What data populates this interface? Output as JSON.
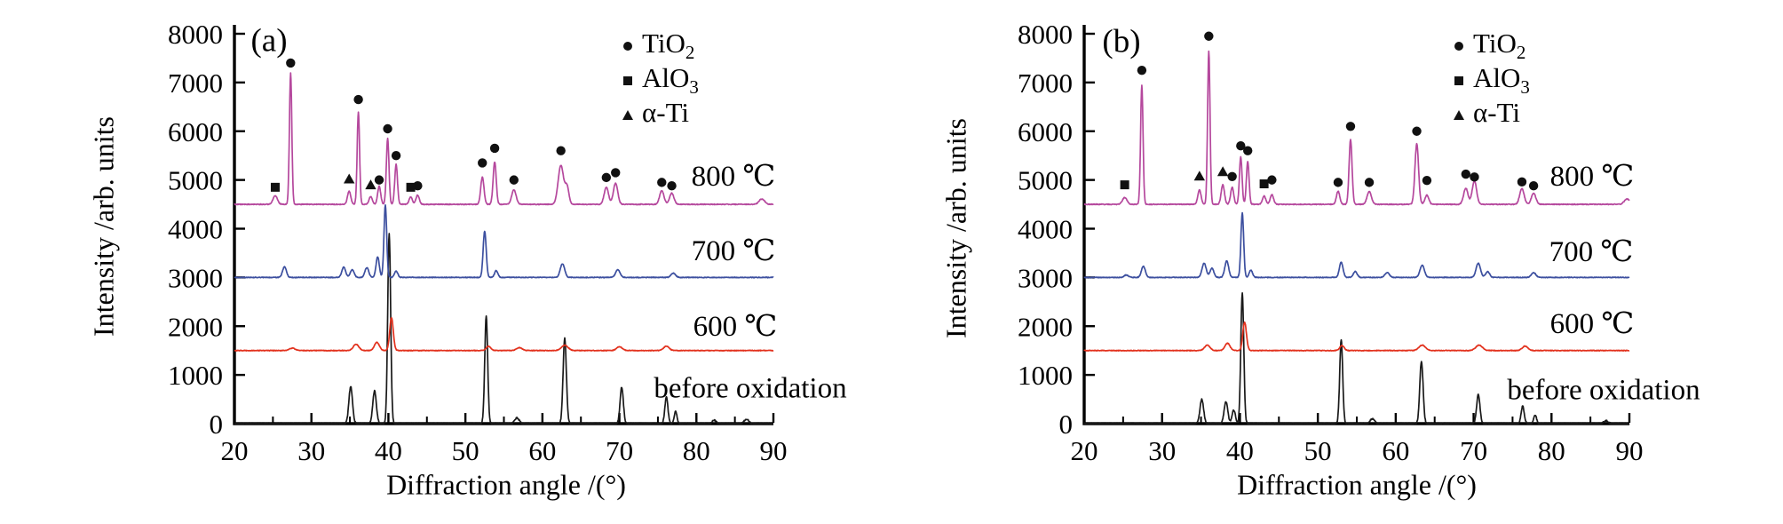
{
  "chart_data": {
    "type": "line",
    "description": "XRD diffraction patterns at different oxidation temperatures, two panels",
    "panels": [
      {
        "panel_label": "(a)",
        "x_axis_title": "Diffraction angle /(°)",
        "y_axis_title": "Intensity /arb. units",
        "x_range": [
          20,
          90
        ],
        "y_range": [
          0,
          8000
        ],
        "x_ticks": [
          20,
          30,
          40,
          50,
          60,
          70,
          80,
          90
        ],
        "x_minor_ticks": [
          25,
          35,
          45,
          55,
          65,
          75,
          85
        ],
        "y_ticks": [
          0,
          1000,
          2000,
          3000,
          4000,
          5000,
          6000,
          7000,
          8000
        ],
        "legend": [
          {
            "symbol": "circle",
            "base": "TiO",
            "sub": "2"
          },
          {
            "symbol": "square",
            "base": "AlO",
            "sub": "3"
          },
          {
            "symbol": "triangle",
            "base": "α-Ti",
            "sub": ""
          }
        ],
        "series": [
          {
            "id": "before-oxidation",
            "label": "before oxidation",
            "color": "#1a1a1a",
            "baseline": 0,
            "noise": 26,
            "peaks": [
              [
                35.1,
                760,
                0.33
              ],
              [
                38.2,
                670,
                0.33
              ],
              [
                40.1,
                3900,
                0.27
              ],
              [
                52.7,
                2200,
                0.27
              ],
              [
                56.7,
                120,
                0.4
              ],
              [
                62.9,
                1750,
                0.3
              ],
              [
                70.3,
                750,
                0.3
              ],
              [
                76.1,
                550,
                0.28
              ],
              [
                77.3,
                250,
                0.25
              ],
              [
                82.3,
                70,
                0.35
              ],
              [
                86.5,
                90,
                0.4
              ]
            ]
          },
          {
            "id": "600c",
            "label": "600 ℃",
            "color": "#e2311d",
            "baseline": 1500,
            "noise": 13,
            "peaks": [
              [
                27.5,
                50,
                0.5
              ],
              [
                35.8,
                130,
                0.5
              ],
              [
                38.5,
                170,
                0.45
              ],
              [
                40.4,
                670,
                0.33
              ],
              [
                53.0,
                90,
                0.4
              ],
              [
                57.0,
                60,
                0.5
              ],
              [
                62.9,
                110,
                0.6
              ],
              [
                70.0,
                80,
                0.5
              ],
              [
                76.1,
                90,
                0.5
              ]
            ]
          },
          {
            "id": "700c",
            "label": "700 ℃",
            "color": "#3c4f9f",
            "baseline": 3000,
            "noise": 14,
            "peaks": [
              [
                26.5,
                220,
                0.35
              ],
              [
                34.2,
                210,
                0.35
              ],
              [
                35.3,
                160,
                0.35
              ],
              [
                37.2,
                200,
                0.35
              ],
              [
                38.6,
                420,
                0.3
              ],
              [
                39.6,
                1480,
                0.25
              ],
              [
                41.0,
                130,
                0.3
              ],
              [
                52.5,
                950,
                0.28
              ],
              [
                54.0,
                140,
                0.3
              ],
              [
                62.6,
                280,
                0.4
              ],
              [
                69.8,
                160,
                0.4
              ],
              [
                77.0,
                90,
                0.4
              ]
            ]
          },
          {
            "id": "800c",
            "label": "800 ℃",
            "color": "#b5489d",
            "baseline": 4500,
            "noise": 16,
            "peaks": [
              [
                25.3,
                180,
                0.4
              ],
              [
                27.3,
                2700,
                0.22
              ],
              [
                34.9,
                270,
                0.3
              ],
              [
                36.1,
                1900,
                0.22
              ],
              [
                37.7,
                160,
                0.3
              ],
              [
                38.8,
                370,
                0.28
              ],
              [
                39.9,
                1350,
                0.24
              ],
              [
                41.0,
                820,
                0.25
              ],
              [
                42.9,
                150,
                0.3
              ],
              [
                43.8,
                190,
                0.3
              ],
              [
                52.2,
                560,
                0.3
              ],
              [
                53.8,
                870,
                0.28
              ],
              [
                56.3,
                300,
                0.4
              ],
              [
                62.4,
                800,
                0.5
              ],
              [
                63.2,
                350,
                0.35
              ],
              [
                68.3,
                350,
                0.4
              ],
              [
                69.5,
                430,
                0.4
              ],
              [
                75.5,
                280,
                0.4
              ],
              [
                76.8,
                230,
                0.4
              ],
              [
                88.5,
                110,
                0.5
              ]
            ]
          }
        ],
        "markers": {
          "circle": [
            [
              27.3,
              7400
            ],
            [
              36.1,
              6650
            ],
            [
              38.8,
              5000
            ],
            [
              39.9,
              6050
            ],
            [
              41.0,
              5500
            ],
            [
              43.8,
              4880
            ],
            [
              52.2,
              5350
            ],
            [
              53.8,
              5650
            ],
            [
              56.3,
              5000
            ],
            [
              62.4,
              5600
            ],
            [
              68.3,
              5050
            ],
            [
              69.5,
              5150
            ],
            [
              75.5,
              4950
            ],
            [
              76.8,
              4880
            ]
          ],
          "square": [
            [
              25.3,
              4850
            ],
            [
              42.9,
              4850
            ]
          ],
          "triangle": [
            [
              34.9,
              5020
            ],
            [
              37.7,
              4900
            ]
          ]
        }
      },
      {
        "panel_label": "(b)",
        "x_axis_title": "Diffraction angle /(°)",
        "y_axis_title": "Intensity /arb. units",
        "x_range": [
          20,
          90
        ],
        "y_range": [
          0,
          8000
        ],
        "x_ticks": [
          20,
          30,
          40,
          50,
          60,
          70,
          80,
          90
        ],
        "x_minor_ticks": [
          25,
          35,
          45,
          55,
          65,
          75,
          85
        ],
        "y_ticks": [
          0,
          1000,
          2000,
          3000,
          4000,
          5000,
          6000,
          7000,
          8000
        ],
        "legend": [
          {
            "symbol": "circle",
            "base": "TiO",
            "sub": "2"
          },
          {
            "symbol": "square",
            "base": "AlO",
            "sub": "3"
          },
          {
            "symbol": "triangle",
            "base": "α-Ti",
            "sub": ""
          }
        ],
        "series": [
          {
            "id": "before-oxidation",
            "label": "before oxidation",
            "color": "#1a1a1a",
            "baseline": 0,
            "noise": 26,
            "peaks": [
              [
                35.1,
                500,
                0.33
              ],
              [
                38.2,
                450,
                0.33
              ],
              [
                39.2,
                280,
                0.3
              ],
              [
                40.3,
                2680,
                0.27
              ],
              [
                53.0,
                1720,
                0.27
              ],
              [
                57.0,
                100,
                0.4
              ],
              [
                63.3,
                1280,
                0.3
              ],
              [
                70.6,
                600,
                0.3
              ],
              [
                76.3,
                360,
                0.28
              ],
              [
                77.9,
                180,
                0.25
              ],
              [
                87.0,
                60,
                0.4
              ]
            ]
          },
          {
            "id": "600c",
            "label": "600 ℃",
            "color": "#e2311d",
            "baseline": 1500,
            "noise": 13,
            "peaks": [
              [
                35.8,
                110,
                0.5
              ],
              [
                38.4,
                150,
                0.45
              ],
              [
                40.6,
                580,
                0.33
              ],
              [
                53.1,
                100,
                0.4
              ],
              [
                63.4,
                110,
                0.6
              ],
              [
                70.7,
                110,
                0.6
              ],
              [
                76.6,
                90,
                0.5
              ]
            ]
          },
          {
            "id": "700c",
            "label": "700 ℃",
            "color": "#3c4f9f",
            "baseline": 3000,
            "noise": 14,
            "peaks": [
              [
                25.4,
                50,
                0.4
              ],
              [
                27.6,
                230,
                0.35
              ],
              [
                35.4,
                290,
                0.38
              ],
              [
                36.4,
                190,
                0.35
              ],
              [
                38.3,
                340,
                0.35
              ],
              [
                40.3,
                1320,
                0.25
              ],
              [
                41.4,
                150,
                0.3
              ],
              [
                53.0,
                310,
                0.33
              ],
              [
                54.8,
                120,
                0.35
              ],
              [
                58.9,
                100,
                0.4
              ],
              [
                63.4,
                250,
                0.4
              ],
              [
                70.6,
                290,
                0.4
              ],
              [
                71.8,
                120,
                0.35
              ],
              [
                77.7,
                100,
                0.4
              ]
            ]
          },
          {
            "id": "800c",
            "label": "800 ℃",
            "color": "#b5489d",
            "baseline": 4500,
            "noise": 16,
            "peaks": [
              [
                25.2,
                140,
                0.4
              ],
              [
                27.4,
                2450,
                0.22
              ],
              [
                34.8,
                290,
                0.3
              ],
              [
                36.0,
                3150,
                0.22
              ],
              [
                37.8,
                400,
                0.3
              ],
              [
                39.0,
                350,
                0.28
              ],
              [
                40.1,
                970,
                0.24
              ],
              [
                41.0,
                880,
                0.24
              ],
              [
                43.1,
                170,
                0.3
              ],
              [
                44.1,
                200,
                0.3
              ],
              [
                52.6,
                270,
                0.3
              ],
              [
                54.2,
                1330,
                0.27
              ],
              [
                56.6,
                260,
                0.4
              ],
              [
                62.7,
                1240,
                0.33
              ],
              [
                64.0,
                190,
                0.35
              ],
              [
                69.0,
                330,
                0.4
              ],
              [
                70.1,
                480,
                0.4
              ],
              [
                76.2,
                320,
                0.4
              ],
              [
                77.7,
                230,
                0.4
              ],
              [
                89.7,
                110,
                0.5
              ]
            ]
          }
        ],
        "markers": {
          "circle": [
            [
              27.4,
              7250
            ],
            [
              36.0,
              7950
            ],
            [
              39.0,
              5070
            ],
            [
              40.1,
              5700
            ],
            [
              41.0,
              5600
            ],
            [
              44.1,
              5000
            ],
            [
              52.6,
              4950
            ],
            [
              54.2,
              6100
            ],
            [
              56.6,
              4950
            ],
            [
              62.7,
              6000
            ],
            [
              64.0,
              4990
            ],
            [
              69.0,
              5120
            ],
            [
              70.1,
              5060
            ],
            [
              76.2,
              4960
            ],
            [
              77.7,
              4880
            ]
          ],
          "square": [
            [
              25.2,
              4900
            ],
            [
              43.1,
              4920
            ]
          ],
          "triangle": [
            [
              34.8,
              5080
            ],
            [
              37.8,
              5170
            ]
          ]
        }
      }
    ]
  }
}
